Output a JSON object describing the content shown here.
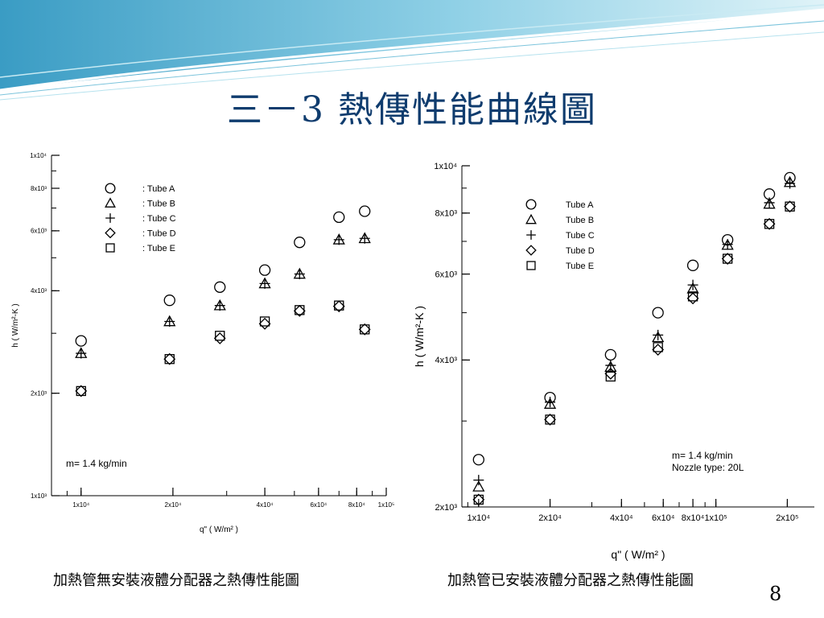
{
  "slide": {
    "title": "三－3  熱傳性能曲線圖",
    "page_number": "8"
  },
  "captions": {
    "left": "加熱管無安裝液體分配器之熱傳性能圖",
    "right": "加熱管已安裝液體分配器之熱傳性能圖"
  },
  "colors": {
    "banner_light": "#dff3f8",
    "banner_mid": "#8fd0e6",
    "banner_dark": "#3a9cc4",
    "title": "#0f3c6e"
  },
  "chart_data": [
    {
      "type": "scatter",
      "xscale": "log",
      "yscale": "log",
      "xlim": [
        8000,
        100000
      ],
      "ylim": [
        1000,
        10000
      ],
      "xlabel": "q\" ( W/m² )",
      "ylabel": "h ( W/m²-K )",
      "x_ticks": [
        {
          "v": 10000,
          "label": "1x10⁴"
        },
        {
          "v": 20000,
          "label": "2x10⁴"
        },
        {
          "v": 40000,
          "label": "4x10⁴"
        },
        {
          "v": 60000,
          "label": "6x10⁴"
        },
        {
          "v": 80000,
          "label": "8x10⁴"
        },
        {
          "v": 100000,
          "label": "1x10⁵"
        }
      ],
      "y_ticks": [
        {
          "v": 1000,
          "label": "1x10³"
        },
        {
          "v": 2000,
          "label": "2x10³"
        },
        {
          "v": 4000,
          "label": "4x10³"
        },
        {
          "v": 6000,
          "label": "6x10³"
        },
        {
          "v": 8000,
          "label": "8x10³"
        },
        {
          "v": 10000,
          "label": "1x10⁴"
        }
      ],
      "annotation": "m= 1.4 kg/min",
      "legend_position": "top-left",
      "x": [
        10000,
        19500,
        28500,
        40000,
        52000,
        70000,
        85000
      ],
      "series": [
        {
          "name": ": Tube A",
          "marker": "circle",
          "values": [
            2850,
            3750,
            4100,
            4600,
            5550,
            6580,
            6850
          ]
        },
        {
          "name": ": Tube B",
          "marker": "triangle",
          "values": [
            2620,
            3250,
            3620,
            4200,
            4480,
            5650,
            5700
          ]
        },
        {
          "name": ": Tube C",
          "marker": "plus",
          "values": [
            2620,
            3250,
            3620,
            4200,
            4480,
            5650,
            5700
          ]
        },
        {
          "name": ": Tube D",
          "marker": "diamond",
          "values": [
            2030,
            2520,
            2900,
            3200,
            3490,
            3600,
            3080
          ]
        },
        {
          "name": ": Tube E",
          "marker": "square",
          "values": [
            2030,
            2520,
            2950,
            3250,
            3510,
            3620,
            3080
          ]
        }
      ]
    },
    {
      "type": "scatter",
      "xscale": "log",
      "yscale": "log",
      "xlim": [
        8500,
        260000
      ],
      "ylim": [
        2000,
        10000
      ],
      "xlabel": "q\" ( W/m² )",
      "ylabel": "h ( W/m²-K )",
      "x_ticks": [
        {
          "v": 10000,
          "label": "1x10⁴"
        },
        {
          "v": 20000,
          "label": "2x10⁴"
        },
        {
          "v": 40000,
          "label": "4x10⁴"
        },
        {
          "v": 60000,
          "label": "6x10⁴"
        },
        {
          "v": 80000,
          "label": "8x10⁴"
        },
        {
          "v": 100000,
          "label": "1x10⁵"
        },
        {
          "v": 200000,
          "label": "2x10⁵"
        }
      ],
      "y_ticks": [
        {
          "v": 2000,
          "label": "2x10³"
        },
        {
          "v": 4000,
          "label": "4x10³"
        },
        {
          "v": 6000,
          "label": "6x10³"
        },
        {
          "v": 8000,
          "label": "8x10³"
        },
        {
          "v": 10000,
          "label": "1x10⁴"
        }
      ],
      "annotation_lines": [
        "m= 1.4 kg/min",
        "Nozzle type: 20L"
      ],
      "legend_position": "top-left",
      "x": [
        10000,
        20000,
        36000,
        57000,
        80000,
        112000,
        168000,
        205000
      ],
      "series": [
        {
          "name": "Tube A",
          "marker": "circle",
          "values": [
            2500,
            3350,
            4100,
            5000,
            6250,
            7050,
            8750,
            9450
          ]
        },
        {
          "name": "Tube B",
          "marker": "triangle",
          "values": [
            2200,
            3250,
            3870,
            4450,
            5600,
            6880,
            8350,
            9250
          ]
        },
        {
          "name": "Tube C",
          "marker": "plus",
          "values": [
            2270,
            3280,
            3900,
            4500,
            5700,
            6900,
            8400,
            9200
          ]
        },
        {
          "name": "Tube D",
          "marker": "diamond",
          "values": [
            2070,
            3020,
            3750,
            4200,
            5350,
            6450,
            7600,
            8250
          ]
        },
        {
          "name": "Tube E",
          "marker": "square",
          "values": [
            2070,
            3020,
            3700,
            4250,
            5400,
            6450,
            7600,
            8250
          ]
        }
      ]
    }
  ]
}
